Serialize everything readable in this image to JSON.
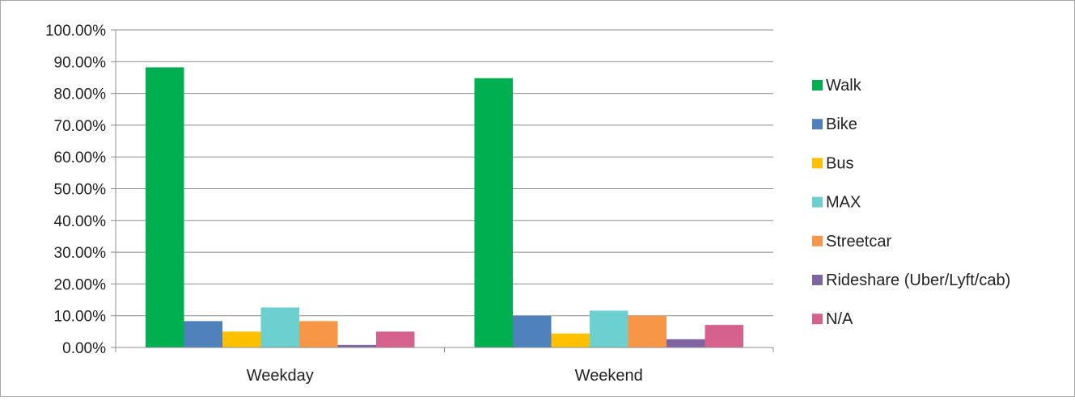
{
  "chart_data": {
    "type": "bar",
    "categories": [
      "Weekday",
      "Weekend"
    ],
    "series": [
      {
        "name": "Walk",
        "color": "#00b050",
        "values": [
          88.2,
          84.8
        ]
      },
      {
        "name": "Bike",
        "color": "#4f81bd",
        "values": [
          8.3,
          10.0
        ]
      },
      {
        "name": "Bus",
        "color": "#ffc000",
        "values": [
          5.0,
          4.4
        ]
      },
      {
        "name": "MAX",
        "color": "#6ccfd0",
        "values": [
          12.6,
          11.6
        ]
      },
      {
        "name": "Streetcar",
        "color": "#f79646",
        "values": [
          8.3,
          10.0
        ]
      },
      {
        "name": "Rideshare (Uber/Lyft/cab)",
        "color": "#8064a2",
        "values": [
          0.8,
          2.6
        ]
      },
      {
        "name": "N/A",
        "color": "#d6618f",
        "values": [
          5.0,
          7.1
        ]
      }
    ],
    "ylim": [
      0,
      100
    ],
    "yticks": [
      "0.00%",
      "10.00%",
      "20.00%",
      "30.00%",
      "40.00%",
      "50.00%",
      "60.00%",
      "70.00%",
      "80.00%",
      "90.00%",
      "100.00%"
    ],
    "grid": true,
    "legend": "right",
    "title": "",
    "xlabel": "",
    "ylabel": ""
  }
}
